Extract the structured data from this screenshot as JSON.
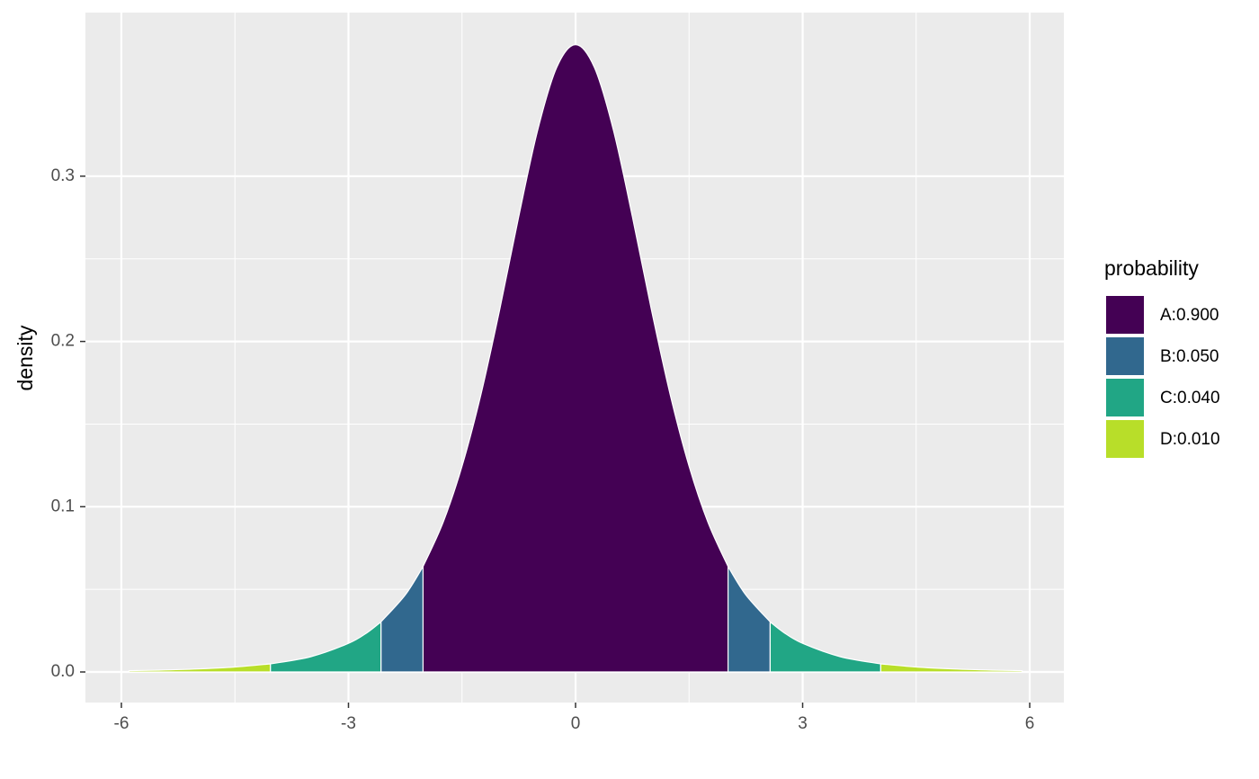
{
  "chart_data": {
    "type": "area",
    "y_label": "density",
    "legend_title": "probability",
    "series": [
      {
        "name": "A:0.900",
        "color": "#440154",
        "x": [
          -2.015,
          -1.75,
          -1.5,
          -1.25,
          -1,
          -0.75,
          -0.5,
          -0.25,
          0,
          0.25,
          0.5,
          0.75,
          1,
          1.25,
          1.5,
          1.75,
          2.015
        ],
        "values": [
          0.0638,
          0.0905,
          0.1245,
          0.1679,
          0.2197,
          0.2757,
          0.3279,
          0.3657,
          0.3796,
          0.3657,
          0.3279,
          0.2757,
          0.2197,
          0.1679,
          0.1245,
          0.0905,
          0.0638
        ]
      },
      {
        "name": "B:0.050",
        "color": "#31688e",
        "x": [
          -2.571,
          -2.25,
          -2.015,
          null,
          2.015,
          2.25,
          2.571
        ],
        "values": [
          0.0303,
          0.0466,
          0.0638,
          null,
          0.0638,
          0.0466,
          0.0303
        ]
      },
      {
        "name": "C:0.040",
        "color": "#21a685",
        "x": [
          -4.032,
          -3.5,
          -3,
          -2.75,
          -2.571,
          null,
          2.571,
          2.75,
          3,
          3.5,
          4.032
        ],
        "values": [
          0.0049,
          0.0092,
          0.0173,
          0.0239,
          0.0303,
          null,
          0.0303,
          0.0239,
          0.0173,
          0.0092,
          0.0049
        ]
      },
      {
        "name": "D:0.010",
        "color": "#b8de29",
        "x": [
          -5.9,
          -5.5,
          -5,
          -4.5,
          -4.032,
          null,
          4.032,
          4.5,
          5,
          5.5,
          5.9
        ],
        "values": [
          0.0008,
          0.0011,
          0.0018,
          0.003,
          0.0049,
          null,
          0.0049,
          0.003,
          0.0018,
          0.0011,
          0.0008
        ]
      }
    ],
    "xlim": [
      -6.475,
      6.451
    ],
    "ylim": [
      -0.0185,
      0.399
    ],
    "xticks": [
      -6,
      -3,
      0,
      3,
      6
    ],
    "yticks": [
      {
        "value": 0,
        "label": "0.0"
      },
      0.1,
      0.2,
      0.3
    ],
    "grid": true
  }
}
